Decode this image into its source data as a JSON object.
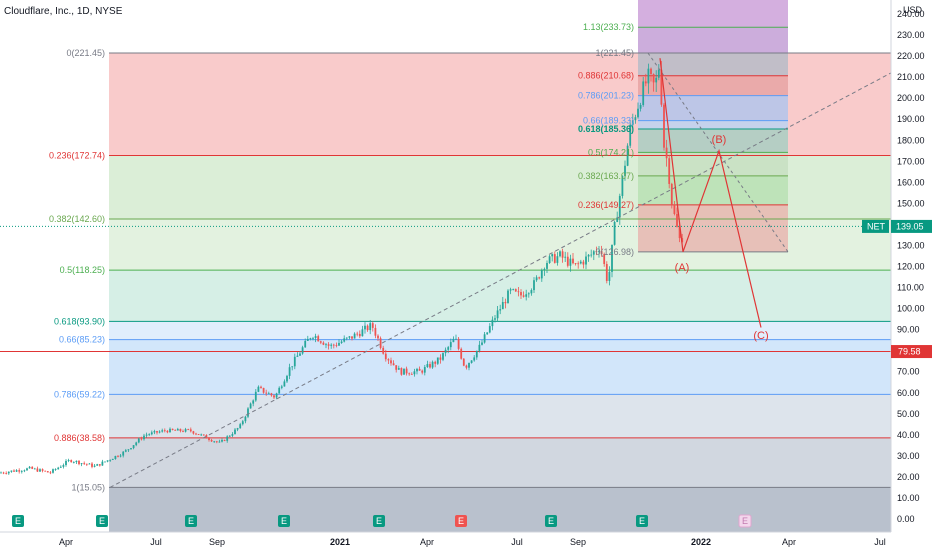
{
  "header": {
    "title": "Cloudflare, Inc., 1D, NYSE",
    "currency": "USD"
  },
  "chart_data": {
    "type": "candlestick",
    "symbol": "NET",
    "last_price": "139.05",
    "hline_price": "79.58",
    "y_ticks": [
      "0.00",
      "10.00",
      "20.00",
      "30.00",
      "40.00",
      "50.00",
      "60.00",
      "70.00",
      "80.00",
      "90.00",
      "100.00",
      "110.00",
      "120.00",
      "130.00",
      "140.00",
      "150.00",
      "160.00",
      "170.00",
      "180.00",
      "190.00",
      "200.00",
      "210.00",
      "220.00",
      "230.00",
      "240.00"
    ],
    "x_ticks": [
      "Apr",
      "Jul",
      "Sep",
      "2021",
      "Apr",
      "Jul",
      "Sep",
      "2022",
      "Apr",
      "Jul"
    ],
    "ylim": [
      -5,
      245
    ],
    "fib_retracement_left": [
      {
        "ratio": 0,
        "price": 221.45,
        "label": "0(221.45)",
        "color": "#787b86"
      },
      {
        "ratio": 0.236,
        "price": 172.74,
        "label": "0.236(172.74)",
        "color": "#e03535"
      },
      {
        "ratio": 0.382,
        "price": 142.6,
        "label": "0.382(142.60)",
        "color": "#6aa84f"
      },
      {
        "ratio": 0.5,
        "price": 118.25,
        "label": "0.5(118.25)",
        "color": "#4caf50"
      },
      {
        "ratio": 0.618,
        "price": 93.9,
        "label": "0.618(93.90)",
        "color": "#089981"
      },
      {
        "ratio": 0.66,
        "price": 85.23,
        "label": "0.66(85.23)",
        "color": "#5b9cf6"
      },
      {
        "ratio": 0.786,
        "price": 59.22,
        "label": "0.786(59.22)",
        "color": "#5b9cf6"
      },
      {
        "ratio": 0.886,
        "price": 38.58,
        "label": "0.886(38.58)",
        "color": "#e03535"
      },
      {
        "ratio": 1,
        "price": 15.05,
        "label": "1(15.05)",
        "color": "#787b86"
      }
    ],
    "fib_retracement_right": [
      {
        "price": 233.73,
        "label": "1.13(233.73)",
        "color": "#4caf50"
      },
      {
        "price": 221.45,
        "label": "1(221.45)",
        "color": "#787b86"
      },
      {
        "price": 210.68,
        "label": "0.886(210.68)",
        "color": "#e03535"
      },
      {
        "price": 201.23,
        "label": "0.786(201.23)",
        "color": "#5b9cf6"
      },
      {
        "price": 189.33,
        "label": "0.66(189.33)",
        "color": "#5b9cf6"
      },
      {
        "price": 185.36,
        "label": "0.618(185.36)",
        "color": "#089981"
      },
      {
        "price": 174.21,
        "label": "0.5(174.21)",
        "color": "#4caf50"
      },
      {
        "price": 163.07,
        "label": "0.382(163.07)",
        "color": "#6aa84f"
      },
      {
        "price": 149.27,
        "label": "0.236(149.27)",
        "color": "#e03535"
      },
      {
        "price": 126.98,
        "label": "0(126.98)",
        "color": "#787b86"
      }
    ],
    "waves": [
      {
        "label": "(A)",
        "price": 127
      },
      {
        "label": "(B)",
        "price": 175
      },
      {
        "label": "(C)",
        "price": 91
      }
    ],
    "earnings_marker": "E"
  }
}
